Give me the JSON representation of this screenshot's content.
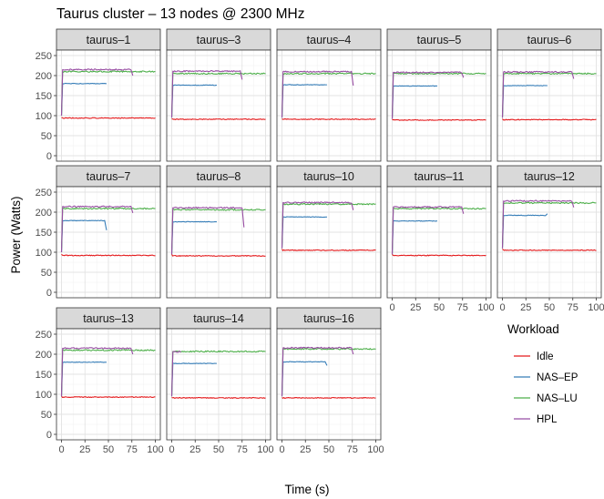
{
  "chart_data": {
    "type": "line",
    "title": "Taurus cluster – 13 nodes @ 2300 MHz",
    "xlabel": "Time (s)",
    "ylabel": "Power (Watts)",
    "xlim": [
      0,
      100
    ],
    "ylim": [
      0,
      250
    ],
    "x_ticks": [
      0,
      25,
      50,
      75,
      100
    ],
    "y_ticks": [
      0,
      50,
      100,
      150,
      200,
      250
    ],
    "grid": true,
    "legend": {
      "title": "Workload",
      "placement": "right",
      "entries": [
        {
          "name": "Idle",
          "color": "#e41a1c"
        },
        {
          "name": "NAS–EP",
          "color": "#377eb8"
        },
        {
          "name": "NAS–LU",
          "color": "#4daf4a"
        },
        {
          "name": "HPL",
          "color": "#984ea3"
        }
      ]
    },
    "facets": [
      {
        "label": "taurus–1",
        "series": {
          "Idle": {
            "start": 95,
            "level": 94,
            "end_x": 100
          },
          "NAS–EP": {
            "start": 100,
            "level": 180,
            "end_x": 48,
            "end_value": 180
          },
          "NAS–LU": {
            "start": 100,
            "level": 210,
            "end_x": 100,
            "end_value": 210
          },
          "HPL": {
            "start": 100,
            "level": 215,
            "end_x": 76,
            "end_value": 200
          }
        }
      },
      {
        "label": "taurus–3",
        "series": {
          "Idle": {
            "start": 92,
            "level": 91,
            "end_x": 100
          },
          "NAS–EP": {
            "start": 95,
            "level": 176,
            "end_x": 48,
            "end_value": 176
          },
          "NAS–LU": {
            "start": 95,
            "level": 205,
            "end_x": 100,
            "end_value": 205
          },
          "HPL": {
            "start": 95,
            "level": 211,
            "end_x": 75,
            "end_value": 190
          }
        }
      },
      {
        "label": "taurus–4",
        "series": {
          "Idle": {
            "start": 92,
            "level": 91,
            "end_x": 100
          },
          "NAS–EP": {
            "start": 95,
            "level": 177,
            "end_x": 48,
            "end_value": 177
          },
          "NAS–LU": {
            "start": 95,
            "level": 205,
            "end_x": 100,
            "end_value": 205
          },
          "HPL": {
            "start": 95,
            "level": 210,
            "end_x": 76,
            "end_value": 175
          }
        }
      },
      {
        "label": "taurus–5",
        "series": {
          "Idle": {
            "start": 91,
            "level": 89,
            "end_x": 100
          },
          "NAS–EP": {
            "start": 92,
            "level": 174,
            "end_x": 48,
            "end_value": 174
          },
          "NAS–LU": {
            "start": 92,
            "level": 205,
            "end_x": 100,
            "end_value": 205
          },
          "HPL": {
            "start": 92,
            "level": 208,
            "end_x": 76,
            "end_value": 195
          }
        }
      },
      {
        "label": "taurus–6",
        "series": {
          "Idle": {
            "start": 92,
            "level": 90,
            "end_x": 100
          },
          "NAS–EP": {
            "start": 95,
            "level": 175,
            "end_x": 48,
            "end_value": 175
          },
          "NAS–LU": {
            "start": 95,
            "level": 205,
            "end_x": 100,
            "end_value": 205
          },
          "HPL": {
            "start": 95,
            "level": 209,
            "end_x": 76,
            "end_value": 192
          }
        }
      },
      {
        "label": "taurus–7",
        "series": {
          "Idle": {
            "start": 95,
            "level": 92,
            "end_x": 100
          },
          "NAS–EP": {
            "start": 100,
            "level": 179,
            "end_x": 48,
            "end_value": 155
          },
          "NAS–LU": {
            "start": 100,
            "level": 209,
            "end_x": 100,
            "end_value": 209
          },
          "HPL": {
            "start": 100,
            "level": 214,
            "end_x": 76,
            "end_value": 198
          }
        }
      },
      {
        "label": "taurus–8",
        "series": {
          "Idle": {
            "start": 95,
            "level": 91,
            "end_x": 100
          },
          "NAS–EP": {
            "start": 95,
            "level": 176,
            "end_x": 48,
            "end_value": 176
          },
          "NAS–LU": {
            "start": 95,
            "level": 206,
            "end_x": 100,
            "end_value": 206
          },
          "HPL": {
            "start": 95,
            "level": 211,
            "end_x": 77,
            "end_value": 162
          }
        }
      },
      {
        "label": "taurus–10",
        "series": {
          "Idle": {
            "start": 108,
            "level": 105,
            "end_x": 100
          },
          "NAS–EP": {
            "start": 110,
            "level": 188,
            "end_x": 48,
            "end_value": 188
          },
          "NAS–LU": {
            "start": 110,
            "level": 220,
            "end_x": 100,
            "end_value": 220
          },
          "HPL": {
            "start": 110,
            "level": 224,
            "end_x": 76,
            "end_value": 205
          }
        }
      },
      {
        "label": "taurus–11",
        "series": {
          "Idle": {
            "start": 95,
            "level": 92,
            "end_x": 100
          },
          "NAS–EP": {
            "start": 95,
            "level": 178,
            "end_x": 48,
            "end_value": 178
          },
          "NAS–LU": {
            "start": 95,
            "level": 209,
            "end_x": 100,
            "end_value": 209
          },
          "HPL": {
            "start": 95,
            "level": 213,
            "end_x": 76,
            "end_value": 196
          }
        }
      },
      {
        "label": "taurus–12",
        "series": {
          "Idle": {
            "start": 108,
            "level": 105,
            "end_x": 100
          },
          "NAS–EP": {
            "start": 110,
            "level": 192,
            "end_x": 48,
            "end_value": 196
          },
          "NAS–LU": {
            "start": 110,
            "level": 223,
            "end_x": 100,
            "end_value": 223
          },
          "HPL": {
            "start": 110,
            "level": 228,
            "end_x": 76,
            "end_value": 212
          }
        }
      },
      {
        "label": "taurus–13",
        "series": {
          "Idle": {
            "start": 95,
            "level": 93,
            "end_x": 100
          },
          "NAS–EP": {
            "start": 95,
            "level": 180,
            "end_x": 48,
            "end_value": 180
          },
          "NAS–LU": {
            "start": 95,
            "level": 210,
            "end_x": 100,
            "end_value": 210
          },
          "HPL": {
            "start": 95,
            "level": 215,
            "end_x": 76,
            "end_value": 200
          }
        }
      },
      {
        "label": "taurus–14",
        "series": {
          "Idle": {
            "start": 92,
            "level": 91,
            "end_x": 100
          },
          "NAS–EP": {
            "start": 95,
            "level": 177,
            "end_x": 48,
            "end_value": 177
          },
          "NAS–LU": {
            "start": 95,
            "level": 207,
            "end_x": 100,
            "end_value": 207
          },
          "HPL": {
            "start": 95,
            "level": 206,
            "end_x": 10,
            "end_value": 206
          }
        }
      },
      {
        "label": "taurus–16",
        "series": {
          "Idle": {
            "start": 92,
            "level": 91,
            "end_x": 100
          },
          "NAS–EP": {
            "start": 95,
            "level": 181,
            "end_x": 48,
            "end_value": 172
          },
          "NAS–LU": {
            "start": 95,
            "level": 213,
            "end_x": 100,
            "end_value": 213
          },
          "HPL": {
            "start": 95,
            "level": 216,
            "end_x": 76,
            "end_value": 200
          }
        }
      }
    ]
  }
}
